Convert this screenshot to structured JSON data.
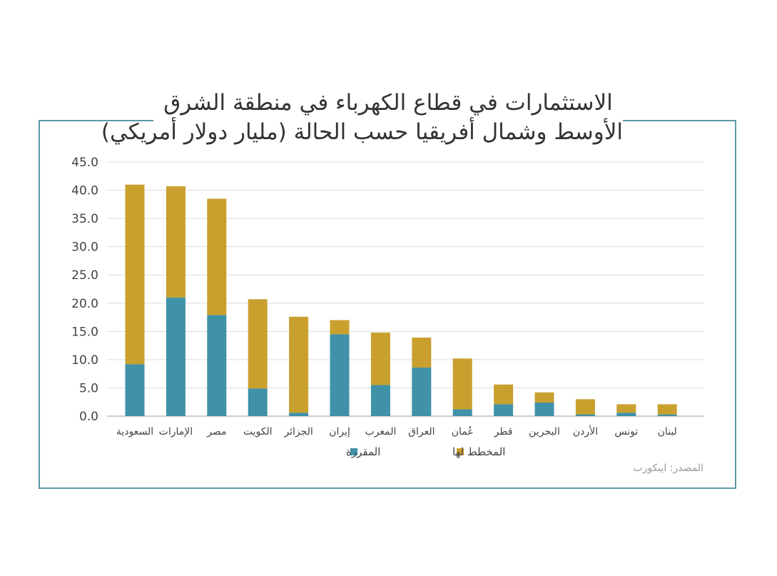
{
  "chart_data": {
    "type": "bar",
    "stacked": true,
    "title_lines": [
      "الاستثمارات في قطاع الكهرباء في منطقة الشرق",
      "الأوسط وشمال أفريقيا حسب الحالة (مليار دولار أمريكي)"
    ],
    "categories": [
      "السعودية",
      "الإمارات",
      "مصر",
      "الكويت",
      "الجزائر",
      "إيران",
      "المغرب",
      "العراق",
      "عُمان",
      "قطر",
      "البحرين",
      "الأردن",
      "تونس",
      "لبنان"
    ],
    "series": [
      {
        "name": "المقررة",
        "color": "#3f92a8",
        "values": [
          9.2,
          21.0,
          17.9,
          4.9,
          0.6,
          14.5,
          5.5,
          8.6,
          1.2,
          2.1,
          2.4,
          0.3,
          0.6,
          0.3
        ]
      },
      {
        "name": "المخطط لها",
        "color": "#c9a02e",
        "values": [
          31.8,
          19.7,
          20.6,
          15.8,
          17.0,
          2.5,
          9.3,
          5.3,
          9.0,
          3.5,
          1.8,
          2.7,
          1.5,
          1.8
        ]
      }
    ],
    "yticks": [
      "0.0",
      "5.0",
      "10.0",
      "15.0",
      "20.0",
      "25.0",
      "30.0",
      "35.0",
      "40.0",
      "45.0"
    ],
    "ylim": [
      0,
      45
    ],
    "grid": true,
    "legend_position": "bottom",
    "source": "المصدر: ايبكورب"
  }
}
